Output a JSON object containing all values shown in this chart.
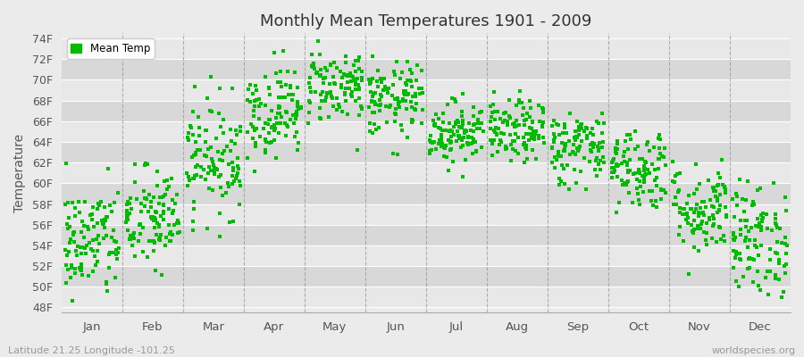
{
  "title": "Monthly Mean Temperatures 1901 - 2009",
  "ylabel": "Temperature",
  "xlabel_months": [
    "Jan",
    "Feb",
    "Mar",
    "Apr",
    "May",
    "Jun",
    "Jul",
    "Aug",
    "Sep",
    "Oct",
    "Nov",
    "Dec"
  ],
  "ytick_labels": [
    "48F",
    "50F",
    "52F",
    "54F",
    "56F",
    "58F",
    "60F",
    "62F",
    "64F",
    "66F",
    "68F",
    "70F",
    "72F",
    "74F"
  ],
  "ytick_values": [
    48,
    50,
    52,
    54,
    56,
    58,
    60,
    62,
    64,
    66,
    68,
    70,
    72,
    74
  ],
  "ylim": [
    47.5,
    74.5
  ],
  "dot_color": "#00bb00",
  "plot_bg_color": "#ebebeb",
  "grid_color": "#ffffff",
  "dashed_line_color": "#888888",
  "legend_label": "Mean Temp",
  "subtitle_left": "Latitude 21.25 Longitude -101.25",
  "subtitle_right": "worldspecies.org",
  "start_year": 1901,
  "end_year": 2009,
  "monthly_means": [
    54.3,
    56.5,
    62.5,
    67.0,
    69.5,
    68.0,
    65.0,
    65.0,
    63.5,
    61.5,
    57.5,
    54.5
  ],
  "monthly_stds": [
    2.8,
    2.5,
    2.8,
    2.2,
    1.8,
    1.8,
    1.5,
    1.5,
    1.8,
    2.0,
    2.2,
    2.8
  ],
  "seed": 42
}
